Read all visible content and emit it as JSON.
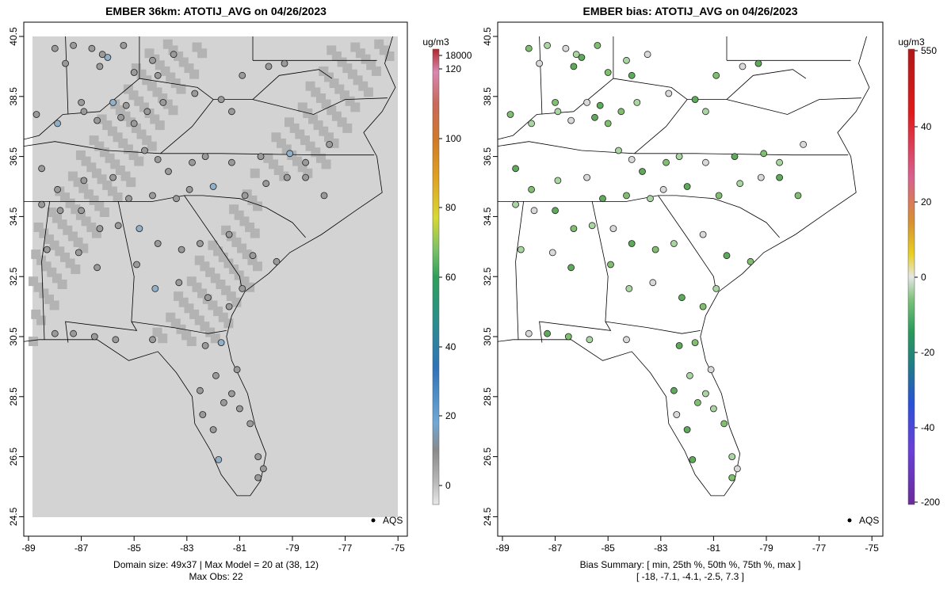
{
  "left_panel": {
    "title": "EMBER 36km: ATOTIJ_AVG on 04/26/2023",
    "footer_line1": "Domain size: 49x37 | Max Model = 20 at (38, 12)",
    "footer_line2": "Max Obs: 22",
    "colorbar": {
      "unit": "ug/m3",
      "labels": [
        "18000",
        "120",
        "100",
        "80",
        "60",
        "40",
        "20",
        "0"
      ],
      "colors": [
        "#d9d9d9",
        "#b5b5b5",
        "#8c8c8c",
        "#6fa8d6",
        "#2f73b8",
        "#2d8c8c",
        "#2fa05a",
        "#7bc267",
        "#d8d832",
        "#e0a020",
        "#d07a28",
        "#c9685a",
        "#d888b0",
        "#b0282a"
      ]
    },
    "legend": "AQS",
    "map_fill": "#d3d3d3",
    "cell_fill": "#b3b3b3",
    "point_fill": "#9a9a9a"
  },
  "right_panel": {
    "title": "EMBER bias: ATOTIJ_AVG on 04/26/2023",
    "footer_line1": "Bias Summary: [ min, 25th %, 50th %, 75th %, max ]",
    "footer_line2": "[ -18,   -7.1,   -4.1,   -2.5,   7.3 ]",
    "colorbar": {
      "unit": "ug/m3",
      "labels": [
        "550",
        "40",
        "20",
        "0",
        "-20",
        "-40",
        "-200"
      ],
      "colors": [
        "#b01818",
        "#e01a1a",
        "#d86090",
        "#d89030",
        "#e8d020",
        "#d8d8d8",
        "#7cc27a",
        "#2a9a5a",
        "#1f7a8a",
        "#2a50d8",
        "#6a40d8",
        "#6a2a9a"
      ]
    },
    "legend": "AQS",
    "point_colors": [
      "#7fbf6e",
      "#a8d5a0",
      "#d9d9d9",
      "#5daa5a"
    ]
  },
  "axes": {
    "x_ticks": [
      "-89",
      "-87",
      "-85",
      "-83",
      "-81",
      "-79",
      "-77",
      "-75"
    ],
    "y_ticks": [
      "40.5",
      "38.5",
      "36.5",
      "34.5",
      "32.5",
      "30.5",
      "28.5",
      "26.5",
      "24.5"
    ]
  },
  "stations": [
    [
      -88.0,
      40.1
    ],
    [
      -87.3,
      40.2
    ],
    [
      -86.6,
      40.1
    ],
    [
      -86.0,
      39.8
    ],
    [
      -85.4,
      40.2
    ],
    [
      -86.2,
      39.9
    ],
    [
      -87.6,
      39.6
    ],
    [
      -86.3,
      39.5
    ],
    [
      -85.0,
      39.3
    ],
    [
      -84.3,
      39.7
    ],
    [
      -83.5,
      39.9
    ],
    [
      -84.1,
      39.2
    ],
    [
      -87.0,
      38.3
    ],
    [
      -86.9,
      38.0
    ],
    [
      -85.8,
      38.3
    ],
    [
      -85.3,
      38.2
    ],
    [
      -84.5,
      38.0
    ],
    [
      -83.9,
      38.3
    ],
    [
      -82.7,
      38.6
    ],
    [
      -81.7,
      38.4
    ],
    [
      -80.9,
      39.2
    ],
    [
      -81.3,
      38.0
    ],
    [
      -79.9,
      39.5
    ],
    [
      -79.3,
      39.6
    ],
    [
      -88.7,
      37.9
    ],
    [
      -87.9,
      37.6
    ],
    [
      -86.4,
      37.7
    ],
    [
      -85.5,
      37.8
    ],
    [
      -85.0,
      37.6
    ],
    [
      -84.6,
      36.7
    ],
    [
      -84.1,
      36.4
    ],
    [
      -83.7,
      36.0
    ],
    [
      -82.8,
      36.3
    ],
    [
      -82.3,
      36.5
    ],
    [
      -81.3,
      36.3
    ],
    [
      -80.2,
      36.5
    ],
    [
      -79.1,
      36.6
    ],
    [
      -78.5,
      36.3
    ],
    [
      -77.6,
      36.9
    ],
    [
      -88.5,
      36.1
    ],
    [
      -87.9,
      35.4
    ],
    [
      -86.9,
      35.7
    ],
    [
      -85.8,
      35.8
    ],
    [
      -85.2,
      35.1
    ],
    [
      -84.3,
      35.2
    ],
    [
      -83.4,
      35.1
    ],
    [
      -82.9,
      35.4
    ],
    [
      -82.0,
      35.5
    ],
    [
      -80.8,
      35.2
    ],
    [
      -80.0,
      35.6
    ],
    [
      -79.2,
      35.8
    ],
    [
      -78.5,
      35.8
    ],
    [
      -77.8,
      35.2
    ],
    [
      -88.5,
      34.9
    ],
    [
      -87.8,
      34.7
    ],
    [
      -87.0,
      34.7
    ],
    [
      -86.3,
      34.1
    ],
    [
      -85.6,
      34.2
    ],
    [
      -84.8,
      34.1
    ],
    [
      -84.1,
      33.6
    ],
    [
      -83.2,
      33.4
    ],
    [
      -82.5,
      33.6
    ],
    [
      -81.4,
      33.9
    ],
    [
      -80.5,
      33.2
    ],
    [
      -79.6,
      33.0
    ],
    [
      -88.3,
      33.4
    ],
    [
      -87.1,
      33.3
    ],
    [
      -86.4,
      32.8
    ],
    [
      -84.9,
      32.9
    ],
    [
      -84.2,
      32.1
    ],
    [
      -83.3,
      32.3
    ],
    [
      -82.2,
      31.8
    ],
    [
      -81.4,
      31.5
    ],
    [
      -80.9,
      32.1
    ],
    [
      -88.0,
      30.6
    ],
    [
      -87.3,
      30.6
    ],
    [
      -86.5,
      30.5
    ],
    [
      -85.7,
      30.4
    ],
    [
      -84.3,
      30.4
    ],
    [
      -82.3,
      30.2
    ],
    [
      -81.7,
      30.3
    ],
    [
      -81.9,
      29.2
    ],
    [
      -81.1,
      29.4
    ],
    [
      -82.5,
      28.7
    ],
    [
      -81.6,
      28.3
    ],
    [
      -81.3,
      28.6
    ],
    [
      -82.4,
      27.9
    ],
    [
      -82.0,
      27.4
    ],
    [
      -80.6,
      27.6
    ],
    [
      -80.3,
      26.5
    ],
    [
      -80.1,
      26.1
    ],
    [
      -81.8,
      26.4
    ],
    [
      -80.3,
      25.8
    ],
    [
      -81.0,
      28.1
    ]
  ]
}
